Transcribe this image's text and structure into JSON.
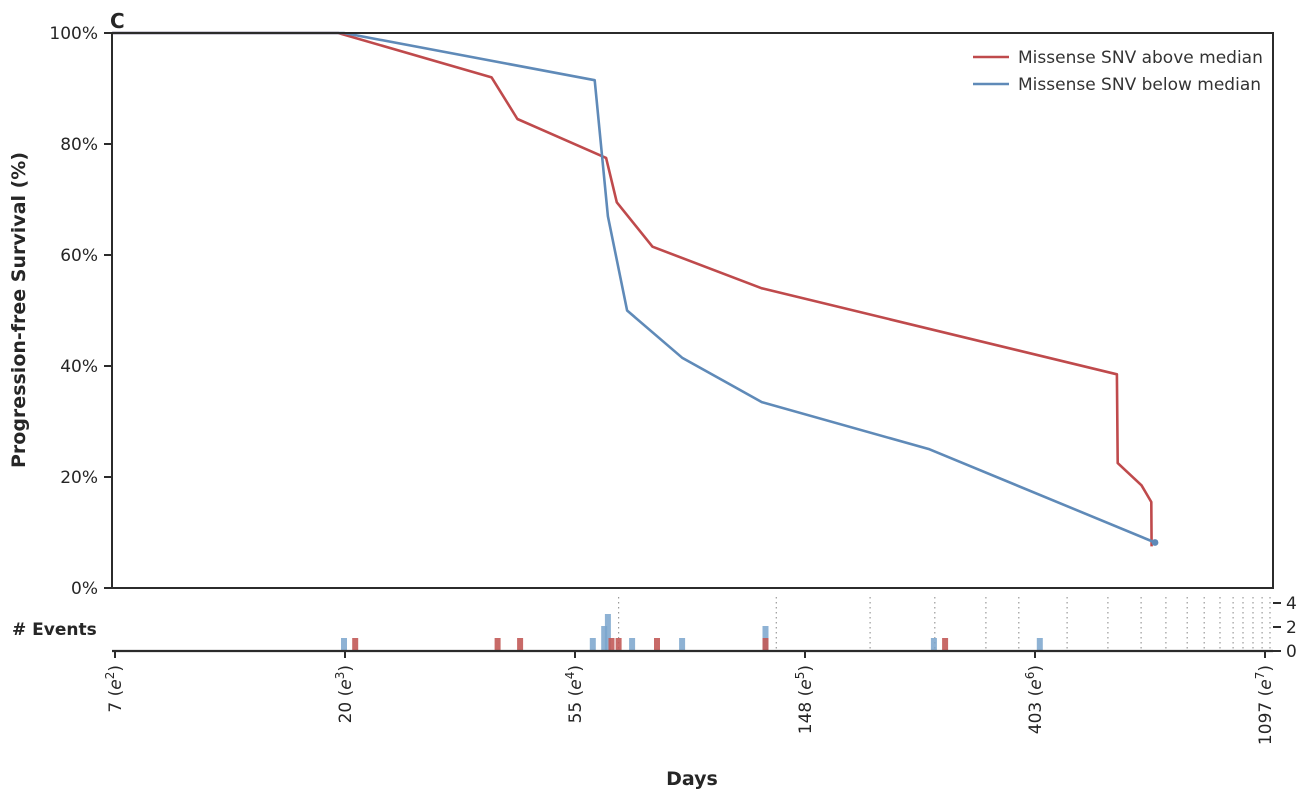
{
  "panel_label": "C",
  "colors": {
    "above": "#bf4a4c",
    "below": "#5f8ab8",
    "bar_above": "#c25a58",
    "bar_below": "#7aa5cd",
    "spine": "#2b2b2b",
    "text": "#262626",
    "grid_dots": "#9a9a9a"
  },
  "chart_data": {
    "type": "line",
    "title": "",
    "xlabel": "Days",
    "ylabel": "Progression-free Survival (%)",
    "x_scale": "log-e",
    "x_range_ln": [
      1.987,
      7.035
    ],
    "ylim": [
      0,
      100
    ],
    "grid": false,
    "legend_position": "upper right",
    "x_ticks": [
      {
        "day": 7,
        "exp": "2"
      },
      {
        "day": 20,
        "exp": "3"
      },
      {
        "day": 55,
        "exp": "4"
      },
      {
        "day": 148,
        "exp": "5"
      },
      {
        "day": 403,
        "exp": "6"
      },
      {
        "day": 1097,
        "exp": "7"
      }
    ],
    "y_ticks": [
      {
        "pct": 0,
        "label": "0%"
      },
      {
        "pct": 20,
        "label": "20%"
      },
      {
        "pct": 40,
        "label": "40%"
      },
      {
        "pct": 60,
        "label": "60%"
      },
      {
        "pct": 80,
        "label": "80%"
      },
      {
        "pct": 100,
        "label": "100%"
      }
    ],
    "series": [
      {
        "name": "Missense SNV above median",
        "key": "above",
        "points_day_pct": [
          [
            7.3,
            100
          ],
          [
            19.5,
            100
          ],
          [
            38,
            92
          ],
          [
            42.5,
            84.5
          ],
          [
            62.5,
            77.5
          ],
          [
            65.5,
            69.5
          ],
          [
            76.5,
            61.5
          ],
          [
            123,
            54
          ],
          [
            576,
            38.5
          ],
          [
            578,
            22.5
          ],
          [
            641,
            18.5
          ],
          [
            669,
            15.5
          ],
          [
            670,
            7.5
          ]
        ]
      },
      {
        "name": "Missense SNV below median",
        "key": "below",
        "end_dot": true,
        "points_day_pct": [
          [
            7.3,
            100
          ],
          [
            20,
            100
          ],
          [
            59.5,
            91.5
          ],
          [
            63,
            67
          ],
          [
            68.5,
            50
          ],
          [
            87,
            41.5
          ],
          [
            123,
            33.5
          ],
          [
            255,
            25
          ],
          [
            680,
            8.2
          ]
        ]
      }
    ]
  },
  "events_panel": {
    "label": "# Events",
    "ylim": [
      0,
      4
    ],
    "y_ticks": [
      {
        "value": 0,
        "label": "0"
      },
      {
        "value": 2,
        "label": "2"
      },
      {
        "value": 4,
        "label": "4"
      }
    ],
    "bars": {
      "below": [
        [
          20,
          1
        ],
        [
          59,
          1
        ],
        [
          62,
          2
        ],
        [
          63,
          3
        ],
        [
          70,
          1
        ],
        [
          87,
          1
        ],
        [
          125,
          2
        ],
        [
          260,
          1
        ],
        [
          412,
          1
        ]
      ],
      "above": [
        [
          21,
          1
        ],
        [
          39,
          1
        ],
        [
          43,
          1
        ],
        [
          64,
          1
        ],
        [
          66,
          1
        ],
        [
          78,
          1
        ],
        [
          125,
          1
        ],
        [
          273,
          1
        ]
      ]
    },
    "minor_gridline_days": [
      66,
      131,
      197,
      261,
      326,
      376,
      464,
      554,
      640,
      713,
      782,
      842,
      902,
      955,
      997,
      1041,
      1083,
      1121
    ]
  }
}
